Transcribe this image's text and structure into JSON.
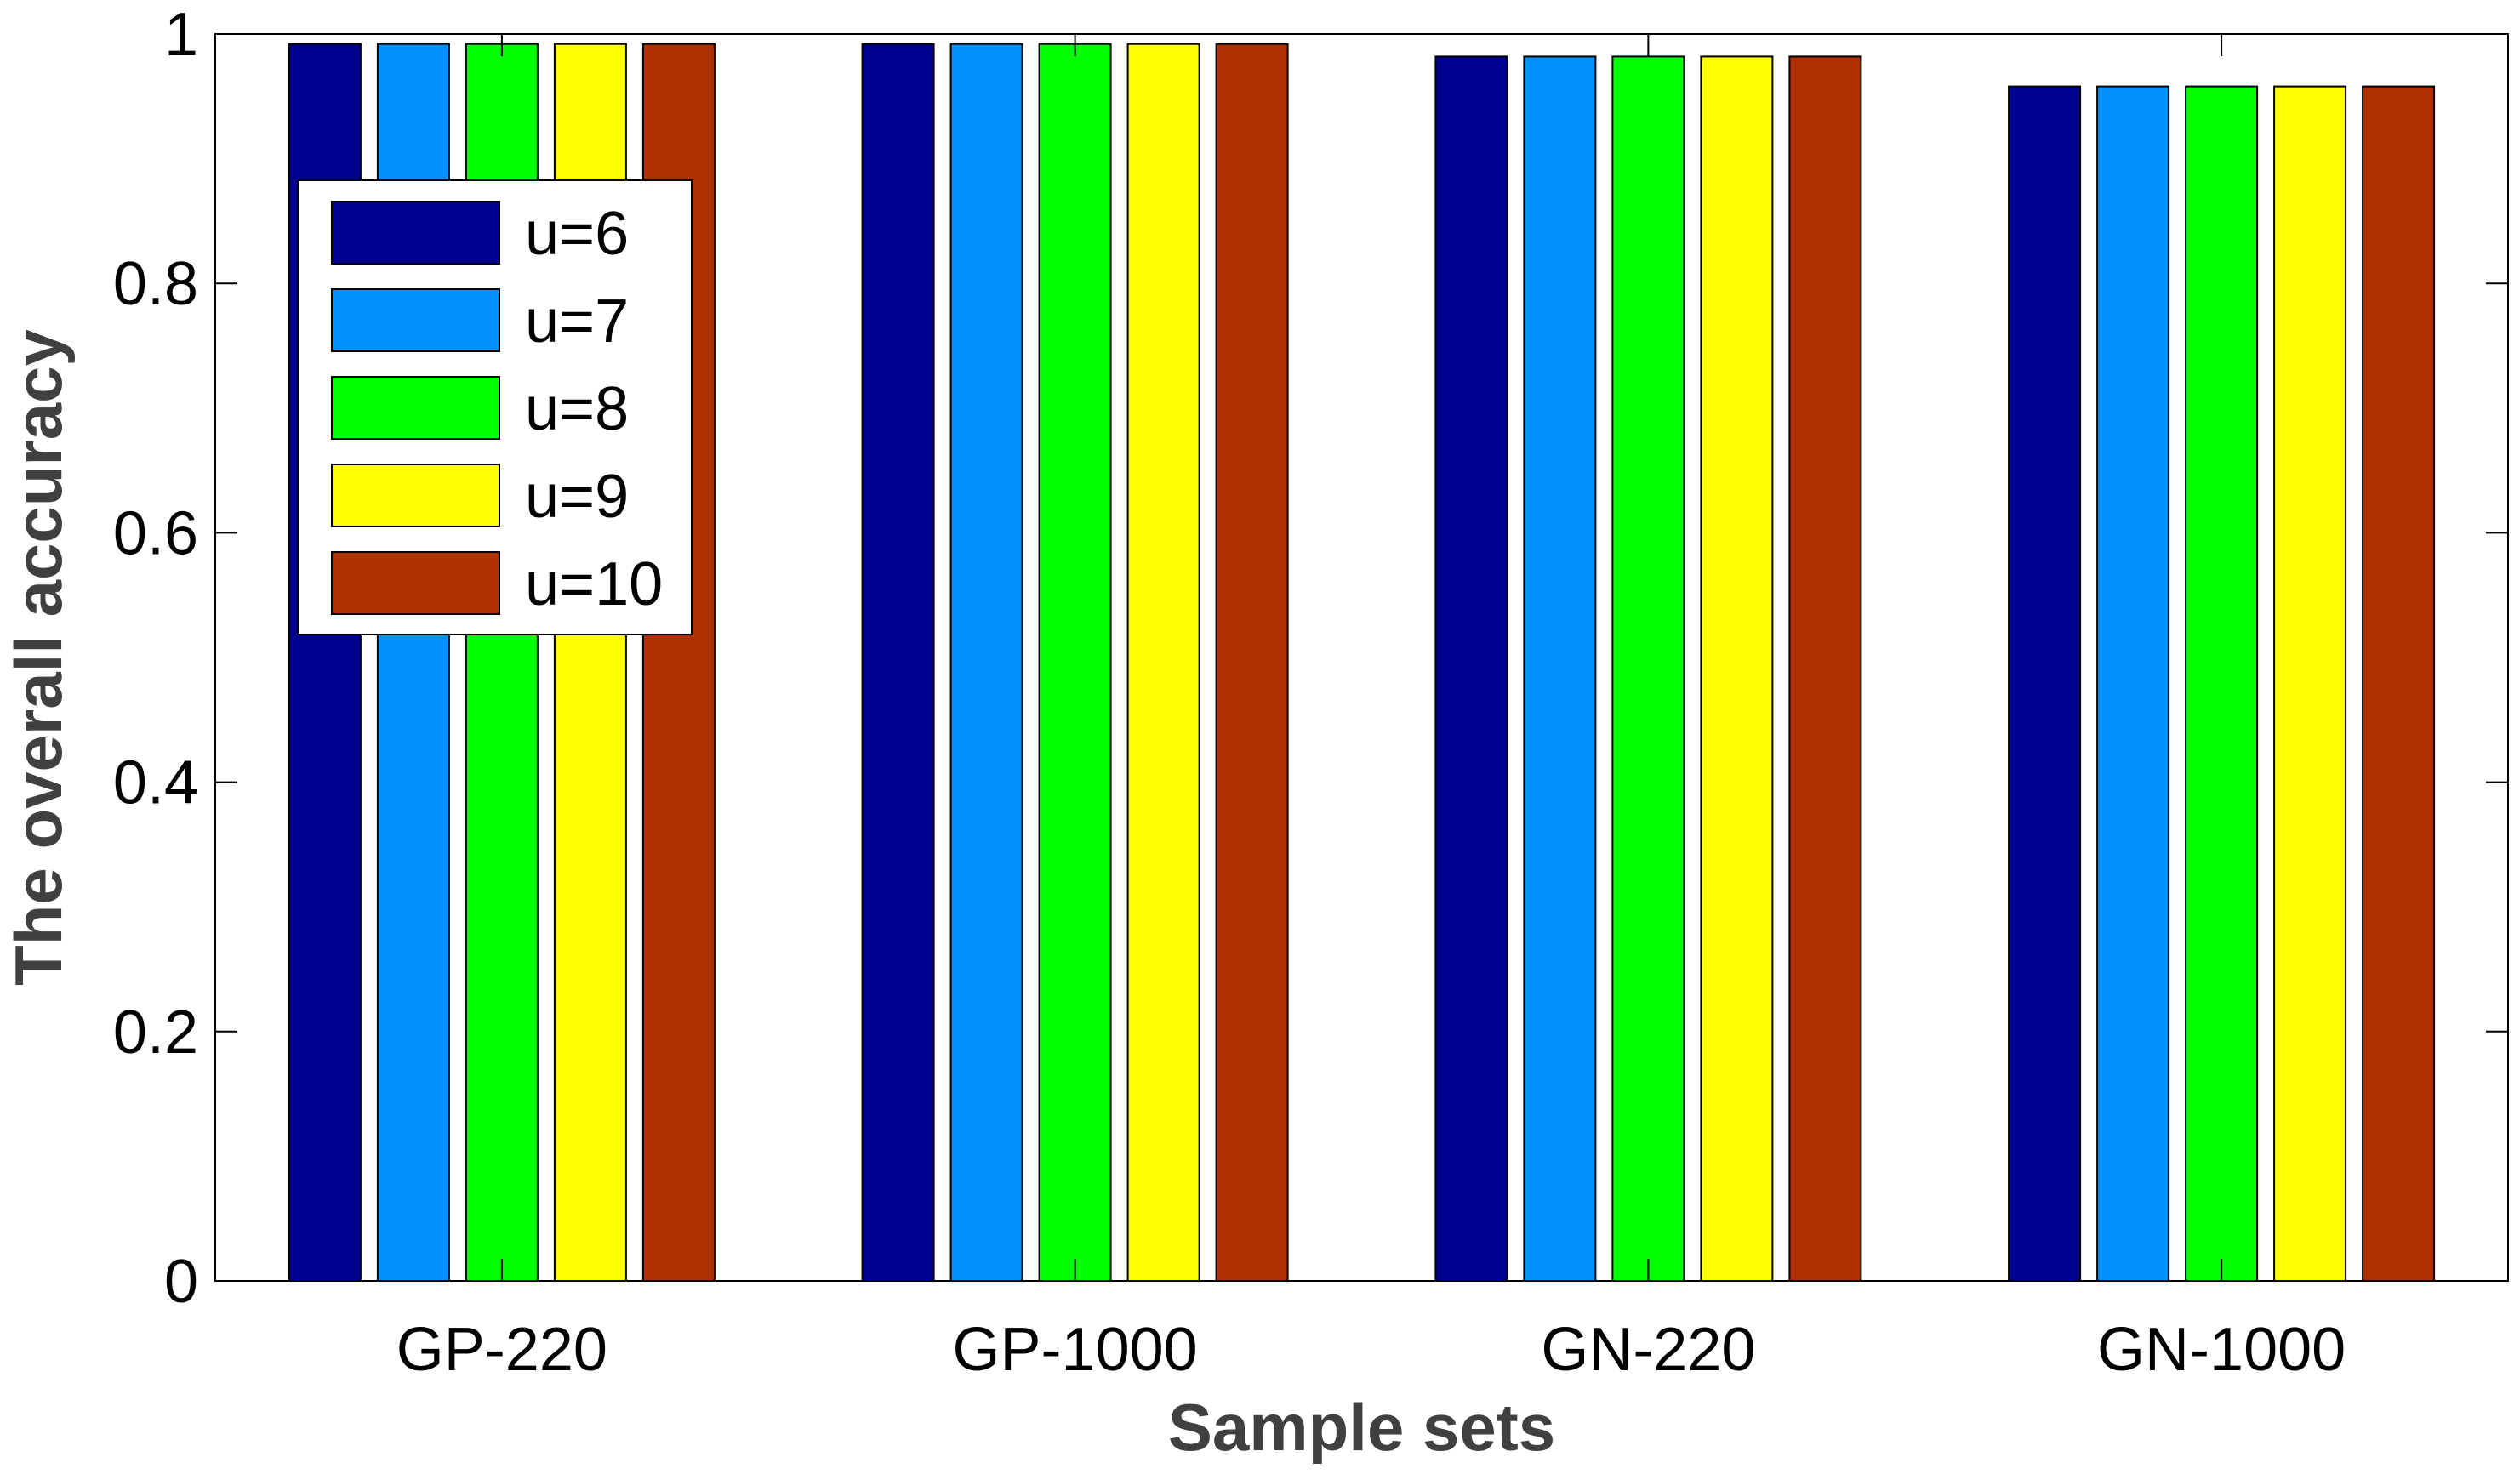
{
  "chart_data": {
    "type": "bar",
    "title": "",
    "xlabel": "Sample sets",
    "ylabel": "The overall accuracy",
    "categories": [
      "GP-220",
      "GP-1000",
      "GN-220",
      "GN-1000"
    ],
    "ylim": [
      0,
      1
    ],
    "yticks": [
      "0",
      "0.2",
      "0.4",
      "0.6",
      "0.8",
      "1"
    ],
    "grid": false,
    "legend_position": "top-left",
    "series": [
      {
        "name": "u=6",
        "color": "#000090",
        "values": [
          0.992,
          0.992,
          0.982,
          0.958
        ]
      },
      {
        "name": "u=7",
        "color": "#0090ff",
        "values": [
          0.992,
          0.992,
          0.982,
          0.958
        ]
      },
      {
        "name": "u=8",
        "color": "#00ff00",
        "values": [
          0.992,
          0.992,
          0.982,
          0.958
        ]
      },
      {
        "name": "u=9",
        "color": "#ffff00",
        "values": [
          0.992,
          0.992,
          0.982,
          0.958
        ]
      },
      {
        "name": "u=10",
        "color": "#b03000",
        "values": [
          0.992,
          0.992,
          0.982,
          0.958
        ]
      }
    ]
  }
}
